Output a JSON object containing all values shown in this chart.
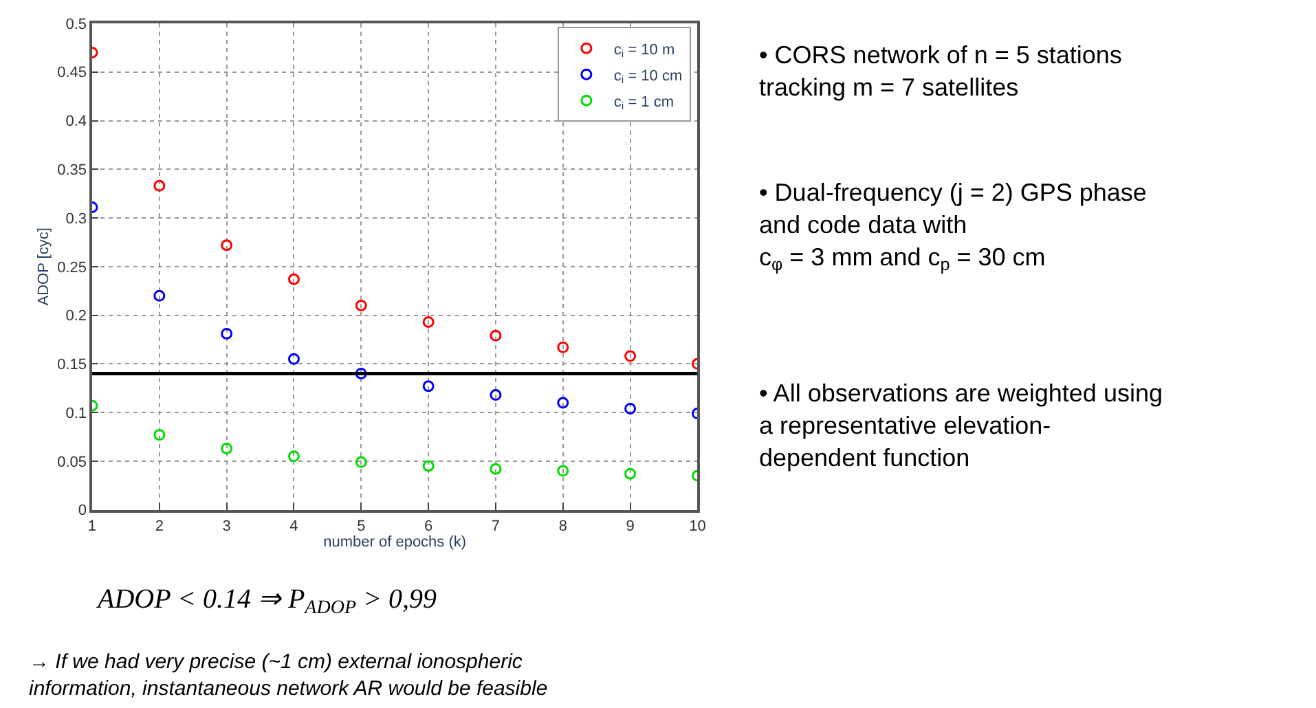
{
  "chart_data": {
    "type": "scatter",
    "xlabel": "number of epochs (k)",
    "ylabel": "ADOP [cyc]",
    "x": [
      1,
      2,
      3,
      4,
      5,
      6,
      7,
      8,
      9,
      10
    ],
    "series": [
      {
        "name": "c$_{i}$ = 10 m",
        "color": "#ff0000",
        "values": [
          0.47,
          0.333,
          0.272,
          0.237,
          0.21,
          0.193,
          0.179,
          0.167,
          0.158,
          0.15
        ]
      },
      {
        "name": "c$_{i}$ = 10 cm",
        "color": "#0000ff",
        "values": [
          0.311,
          0.22,
          0.181,
          0.155,
          0.14,
          0.127,
          0.118,
          0.11,
          0.104,
          0.099
        ]
      },
      {
        "name": "c$_{i}$ = 1 cm",
        "color": "#00dd00",
        "values": [
          0.107,
          0.077,
          0.063,
          0.055,
          0.049,
          0.045,
          0.042,
          0.04,
          0.037,
          0.035
        ]
      }
    ],
    "xlim": [
      1,
      10
    ],
    "xticks": [
      1,
      2,
      3,
      4,
      5,
      6,
      7,
      8,
      9,
      10
    ],
    "ylim": [
      0,
      0.5
    ],
    "yticks": [
      0,
      0.05,
      0.1,
      0.15,
      0.2,
      0.25,
      0.3,
      0.35,
      0.4,
      0.45,
      0.5
    ],
    "ref_lines": [
      {
        "axis": "y",
        "value": 0.14,
        "label": null,
        "color": "#000000"
      }
    ],
    "grid": true,
    "legend": "top right",
    "marker": "circle",
    "annotations": [
      "• CORS network of n = 5 stations\ntracking m = 7 satellites",
      "• Dual-frequency (j = 2) GPS phase\nand code data with\nc$_{φ}$ = 3 mm and c$_{p}$ = 30 cm",
      "• All observations are weighted using\na representative elevation-\ndependent function",
      "ADOP < 0.14 ⇒ P$_{ADOP}$ > 0,99",
      "→ If we had very precise (~1 cm) external ionospheric\ninformation, instantaneous network AR would be feasible"
    ]
  }
}
